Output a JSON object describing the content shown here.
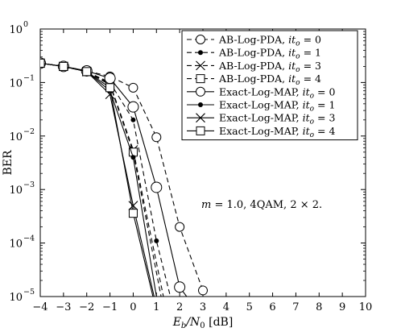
{
  "chart_data": {
    "type": "line",
    "title": "",
    "xlabel": "E_b/N_0 [dB]",
    "ylabel": "BER",
    "xlim": [
      -4,
      10
    ],
    "ylim": [
      1e-05,
      1
    ],
    "y_scale": "log",
    "grid": false,
    "legend_placement": "top-right",
    "x_ticks": [
      -4,
      -3,
      -2,
      -1,
      0,
      1,
      2,
      3,
      4,
      5,
      6,
      7,
      8,
      9,
      10
    ],
    "x_tick_labels": [
      "−4",
      "−3",
      "−2",
      "−1",
      "0",
      "1",
      "2",
      "3",
      "4",
      "5",
      "6",
      "7",
      "8",
      "9",
      "10"
    ],
    "y_ticks": [
      {
        "value": 1.0,
        "base": "10",
        "exp": "0"
      },
      {
        "value": 0.1,
        "base": "10",
        "exp": "−1"
      },
      {
        "value": 0.01,
        "base": "10",
        "exp": "−2"
      },
      {
        "value": 0.001,
        "base": "10",
        "exp": "−3"
      },
      {
        "value": 0.0001,
        "base": "10",
        "exp": "−4"
      },
      {
        "value": 1e-05,
        "base": "10",
        "exp": "−5"
      }
    ],
    "annotation": "m = 1.0, 4QAM, 2 × 2.",
    "series": [
      {
        "name": "AB-Log-PDA, it_o = 0",
        "name_main": "AB-Log-PDA, ",
        "name_var": "it",
        "name_sub": "o",
        "name_tail": " = 0",
        "dash": "dashed",
        "marker": "circle-open",
        "x": [
          -4,
          -3,
          -2,
          -1,
          0,
          1,
          2,
          3
        ],
        "y": [
          0.23,
          0.2,
          0.165,
          0.13,
          0.08,
          0.0095,
          0.0002,
          1.3e-05
        ]
      },
      {
        "name": "AB-Log-PDA, it_o = 1",
        "name_main": "AB-Log-PDA, ",
        "name_var": "it",
        "name_sub": "o",
        "name_tail": " = 1",
        "dash": "dashed",
        "marker": "dot",
        "x": [
          -4,
          -3,
          -2,
          -1,
          0,
          1,
          1.6
        ],
        "y": [
          0.23,
          0.2,
          0.16,
          0.1,
          0.02,
          0.00011,
          1e-05
        ]
      },
      {
        "name": "AB-Log-PDA, it_o = 3",
        "name_main": "AB-Log-PDA, ",
        "name_var": "it",
        "name_sub": "o",
        "name_tail": " = 3",
        "dash": "dashed",
        "marker": "cross",
        "x": [
          -4,
          -3,
          -2,
          -1,
          0,
          1.3
        ],
        "y": [
          0.23,
          0.2,
          0.16,
          0.095,
          0.0055,
          1e-05
        ]
      },
      {
        "name": "AB-Log-PDA, it_o = 4",
        "name_main": "AB-Log-PDA, ",
        "name_var": "it",
        "name_sub": "o",
        "name_tail": " = 4",
        "dash": "dashed",
        "marker": "square-open",
        "x": [
          -4,
          -3,
          -2,
          -1,
          0,
          1.2
        ],
        "y": [
          0.23,
          0.2,
          0.16,
          0.09,
          0.005,
          1e-05
        ]
      },
      {
        "name": "Exact-Log-MAP, it_o = 0",
        "name_main": "Exact-Log-MAP, ",
        "name_var": "it",
        "name_sub": "o",
        "name_tail": " = 0",
        "dash": "solid",
        "marker": "circle-open",
        "x": [
          -4,
          -3,
          -2,
          -1,
          0,
          1,
          2,
          2.3
        ],
        "y": [
          0.23,
          0.2,
          0.165,
          0.12,
          0.035,
          0.0011,
          1.5e-05,
          1e-05
        ]
      },
      {
        "name": "Exact-Log-MAP, it_o = 1",
        "name_main": "Exact-Log-MAP, ",
        "name_var": "it",
        "name_sub": "o",
        "name_tail": " = 1",
        "dash": "solid",
        "marker": "dot",
        "x": [
          -4,
          -3,
          -2,
          -1,
          0,
          1
        ],
        "y": [
          0.23,
          0.2,
          0.16,
          0.07,
          0.004,
          1e-05
        ]
      },
      {
        "name": "Exact-Log-MAP, it_o = 3",
        "name_main": "Exact-Log-MAP, ",
        "name_var": "it",
        "name_sub": "o",
        "name_tail": " = 3",
        "dash": "solid",
        "marker": "cross",
        "x": [
          -4,
          -3,
          -2,
          -1,
          0,
          0.9
        ],
        "y": [
          0.23,
          0.2,
          0.16,
          0.06,
          0.0005,
          1e-05
        ]
      },
      {
        "name": "Exact-Log-MAP, it_o = 4",
        "name_main": "Exact-Log-MAP, ",
        "name_var": "it",
        "name_sub": "o",
        "name_tail": " = 4",
        "dash": "solid",
        "marker": "square-open",
        "x": [
          -4,
          -3,
          -2,
          -1,
          0,
          0.85
        ],
        "y": [
          0.23,
          0.2,
          0.16,
          0.08,
          0.00036,
          1e-05
        ]
      }
    ]
  }
}
